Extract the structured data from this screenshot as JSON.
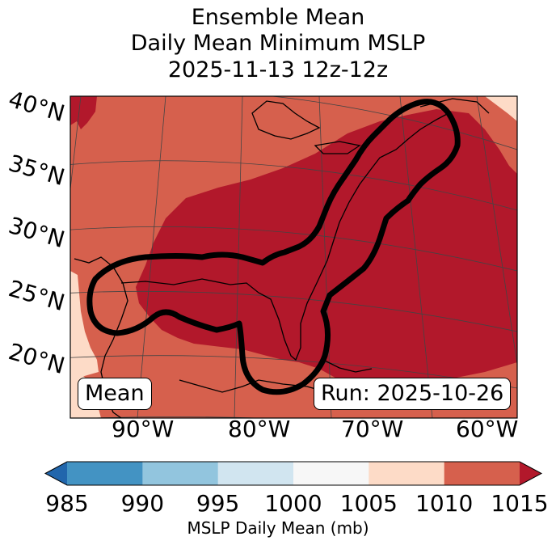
{
  "title": {
    "line1": "Ensemble Mean",
    "line2": "Daily Mean Minimum MSLP",
    "line3": "2025-11-13 12z-12z"
  },
  "map": {
    "lat_labels": [
      "40°N",
      "35°N",
      "30°N",
      "25°N",
      "20°N"
    ],
    "lon_labels": [
      "90°W",
      "80°W",
      "70°W",
      "60°W"
    ],
    "mean_label": "Mean",
    "run_label": "Run: 2025-10-26",
    "colors": {
      "dark_red": "#b2182b",
      "red": "#d6604d",
      "peach": "#fddbc7",
      "contour": "#000000",
      "grid": "#444444"
    }
  },
  "colorbar": {
    "label": "MSLP Daily Mean (mb)",
    "ticks": [
      "985",
      "990",
      "995",
      "1000",
      "1005",
      "1010",
      "1015"
    ],
    "colors": [
      "#2166ac",
      "#4393c3",
      "#92c5de",
      "#d1e5f0",
      "#f7f7f7",
      "#fddbc7",
      "#d6604d",
      "#b2182b"
    ]
  }
}
